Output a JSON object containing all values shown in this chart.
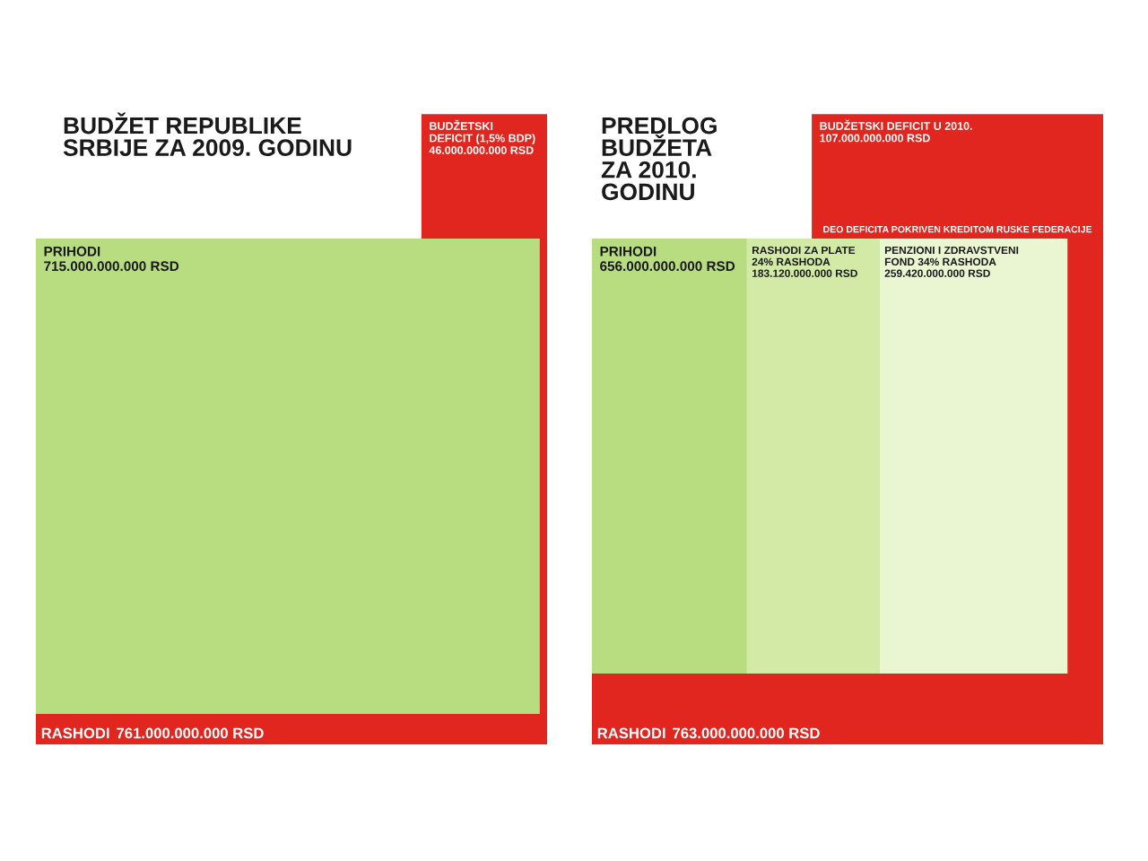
{
  "chart_data": [
    {
      "type": "other",
      "title": "BUDŽET REPUBLIKE\nSRBIJE ZA 2009. GODINU",
      "categories": [
        "RASHODI",
        "PRIHODI",
        "BUDŽETSKI\nDEFICIT (1,5% BDP)"
      ],
      "values": [
        761000000000,
        715000000000,
        46000000000
      ],
      "value_labels": [
        "761.000.000.000 RSD",
        "715.000.000.000 RSD",
        "46.000.000.000 RSD"
      ],
      "colors": [
        "#e0261e",
        "#b8dc80",
        "#e0261e"
      ]
    },
    {
      "type": "other",
      "title": "PREDLOG\nBUDŽETA\nZA 2010.\nGODINU",
      "categories": [
        "RASHODI",
        "PRIHODI",
        "RASHODI ZA PLATE\n24% RASHODA",
        "PENZIONI I ZDRAVSTVENI\nFOND 34% RASHODA",
        "BUDŽETSKI DEFICIT U 2010."
      ],
      "values": [
        763000000000,
        656000000000,
        183120000000,
        259420000000,
        107000000000
      ],
      "value_labels": [
        "763.000.000.000 RSD",
        "656.000.000.000 RSD",
        "183.120.000.000 RSD",
        "259.420.000.000 RSD",
        "107.000.000.000 RSD"
      ],
      "colors": [
        "#e0261e",
        "#b8dc80",
        "#d3eaa6",
        "#eaf5d2",
        "#e0261e"
      ],
      "annotations": [
        "DEO DEFICITA POKRIVEN KREDITOM RUSKE FEDERACIJE"
      ]
    }
  ]
}
